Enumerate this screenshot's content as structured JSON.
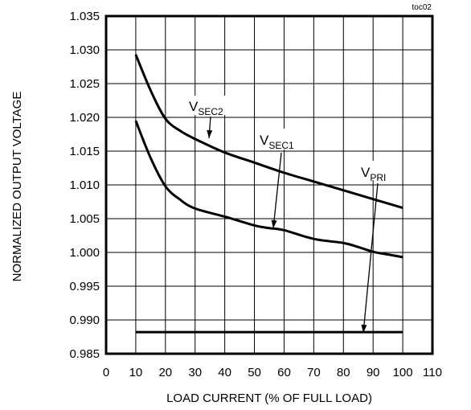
{
  "chart_data": {
    "type": "line",
    "corner_label": "toc02",
    "xlabel": "LOAD CURRENT  (% OF FULL LOAD)",
    "ylabel": "NORMALIZED OUTPUT VOLTAGE",
    "xlim": [
      0,
      110
    ],
    "ylim": [
      0.985,
      1.035
    ],
    "xticks": [
      "0",
      "10",
      "20",
      "30",
      "40",
      "50",
      "60",
      "70",
      "80",
      "90",
      "100",
      "110"
    ],
    "yticks": [
      "0.985",
      "0.990",
      "0.995",
      "1.000",
      "1.005",
      "1.010",
      "1.015",
      "1.020",
      "1.025",
      "1.030",
      "1.035"
    ],
    "grid": true,
    "series": [
      {
        "label_main": "V",
        "label_sub": "SEC2",
        "x": [
          10,
          15,
          20,
          25,
          30,
          40,
          50,
          60,
          70,
          80,
          90,
          100
        ],
        "y": [
          1.0293,
          1.024,
          1.0198,
          1.018,
          1.0168,
          1.0148,
          1.0133,
          1.0118,
          1.0105,
          1.0092,
          1.0079,
          1.0066
        ]
      },
      {
        "label_main": "V",
        "label_sub": "SEC1",
        "x": [
          10,
          15,
          20,
          25,
          30,
          40,
          50,
          55,
          60,
          70,
          80,
          85,
          90,
          95,
          100
        ],
        "y": [
          1.0195,
          1.014,
          1.0098,
          1.0078,
          1.0065,
          1.0053,
          1.004,
          1.0036,
          1.0033,
          1.002,
          1.0014,
          1.0008,
          1.0001,
          0.9997,
          0.9993
        ]
      },
      {
        "label_main": "V",
        "label_sub": "PRI",
        "x": [
          10,
          100
        ],
        "y": [
          0.9882,
          0.9882
        ]
      }
    ]
  }
}
